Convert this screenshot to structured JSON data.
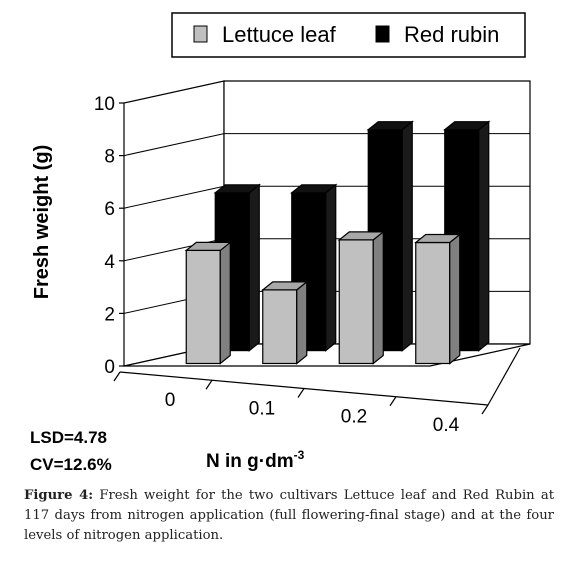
{
  "chart_data": {
    "type": "bar",
    "categories": [
      "0",
      "0.1",
      "0.2",
      "0.4"
    ],
    "series": [
      {
        "name": "Lettuce leaf",
        "values": [
          4.3,
          2.8,
          4.7,
          4.6
        ],
        "color": "#c0c0c0"
      },
      {
        "name": "Red rubin",
        "values": [
          6.0,
          6.0,
          8.4,
          8.4
        ],
        "color": "#000000"
      }
    ],
    "ylabel": "Fresh weight  (g)",
    "xlabel_main": "N in g·dm",
    "xlabel_sup": "-3",
    "yticks": [
      "0",
      "2",
      "4",
      "6",
      "8",
      "10"
    ],
    "ylim": [
      0,
      10
    ],
    "grid": true,
    "legend_position": "top"
  },
  "stats": {
    "lsd": "LSD=4.78",
    "cv": "CV=12.6%"
  },
  "caption": {
    "label": "Figure 4:",
    "text": " Fresh weight for the two cultivars Lettuce leaf and Red Rubin at 117 days from nitrogen application (full flowering-final stage) and at the four levels of nitrogen application."
  }
}
